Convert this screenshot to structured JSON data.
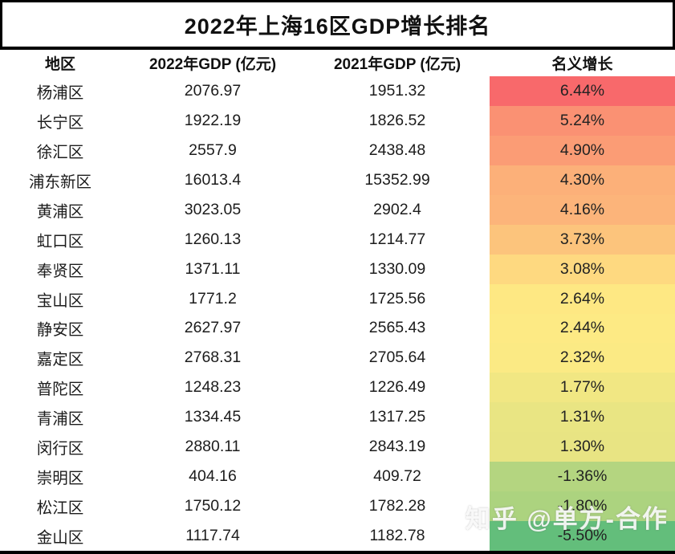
{
  "title": "2022年上海16区GDP增长排名",
  "watermark": "知乎 @单方-合作",
  "colors": {
    "border": "#000000",
    "background": "#ffffff",
    "text": "#111111",
    "scale_max_red": "#F8696B",
    "scale_mid_yellow": "#FFEB84",
    "scale_min_green": "#63BE7B"
  },
  "table": {
    "headers": [
      "地区",
      "2022年GDP (亿元)",
      "2021年GDP (亿元)",
      "名义增长"
    ],
    "rows": [
      {
        "district": "杨浦区",
        "gdp2022": "2076.97",
        "gdp2021": "1951.32",
        "growth": "6.44%",
        "color": "#F8696B"
      },
      {
        "district": "长宁区",
        "gdp2022": "1922.19",
        "gdp2021": "1826.52",
        "growth": "5.24%",
        "color": "#FA9173"
      },
      {
        "district": "徐汇区",
        "gdp2022": "2557.9",
        "gdp2021": "2438.48",
        "growth": "4.90%",
        "color": "#FB9C75"
      },
      {
        "district": "浦东新区",
        "gdp2022": "16013.4",
        "gdp2021": "15352.99",
        "growth": "4.30%",
        "color": "#FCB079"
      },
      {
        "district": "黄浦区",
        "gdp2022": "3023.05",
        "gdp2021": "2902.4",
        "growth": "4.16%",
        "color": "#FCB47A"
      },
      {
        "district": "虹口区",
        "gdp2022": "1260.13",
        "gdp2021": "1214.77",
        "growth": "3.73%",
        "color": "#FCC47C"
      },
      {
        "district": "奉贤区",
        "gdp2022": "1371.11",
        "gdp2021": "1330.09",
        "growth": "3.08%",
        "color": "#FED980"
      },
      {
        "district": "宝山区",
        "gdp2022": "1771.2",
        "gdp2021": "1725.56",
        "growth": "2.64%",
        "color": "#FEE883"
      },
      {
        "district": "静安区",
        "gdp2022": "2627.97",
        "gdp2021": "2565.43",
        "growth": "2.44%",
        "color": "#FDEA84"
      },
      {
        "district": "嘉定区",
        "gdp2022": "2768.31",
        "gdp2021": "2705.64",
        "growth": "2.32%",
        "color": "#FBEA84"
      },
      {
        "district": "普陀区",
        "gdp2022": "1248.23",
        "gdp2021": "1226.49",
        "growth": "1.77%",
        "color": "#F1E783"
      },
      {
        "district": "青浦区",
        "gdp2022": "1334.45",
        "gdp2021": "1317.25",
        "growth": "1.31%",
        "color": "#E9E583"
      },
      {
        "district": "闵行区",
        "gdp2022": "2880.11",
        "gdp2021": "2843.19",
        "growth": "1.30%",
        "color": "#E8E483"
      },
      {
        "district": "崇明区",
        "gdp2022": "404.16",
        "gdp2021": "409.72",
        "growth": "-1.36%",
        "color": "#B4D580"
      },
      {
        "district": "松江区",
        "gdp2022": "1750.12",
        "gdp2021": "1782.28",
        "growth": "-1.80%",
        "color": "#ACD37F"
      },
      {
        "district": "金山区",
        "gdp2022": "1117.74",
        "gdp2021": "1182.78",
        "growth": "-5.50%",
        "color": "#63BE7B"
      }
    ]
  },
  "chart_data": {
    "type": "table",
    "title": "2022年上海16区GDP增长排名",
    "columns": [
      "地区",
      "2022年GDP (亿元)",
      "2021年GDP (亿元)",
      "名义增长"
    ],
    "heatmap_column": "名义增长",
    "heatmap_scale": {
      "max_color": "#F8696B",
      "mid_color": "#FFEB84",
      "min_color": "#63BE7B",
      "max": 6.44,
      "min": -5.5
    },
    "rows": [
      [
        "杨浦区",
        2076.97,
        1951.32,
        "6.44%"
      ],
      [
        "长宁区",
        1922.19,
        1826.52,
        "5.24%"
      ],
      [
        "徐汇区",
        2557.9,
        2438.48,
        "4.90%"
      ],
      [
        "浦东新区",
        16013.4,
        15352.99,
        "4.30%"
      ],
      [
        "黄浦区",
        3023.05,
        2902.4,
        "4.16%"
      ],
      [
        "虹口区",
        1260.13,
        1214.77,
        "3.73%"
      ],
      [
        "奉贤区",
        1371.11,
        1330.09,
        "3.08%"
      ],
      [
        "宝山区",
        1771.2,
        1725.56,
        "2.64%"
      ],
      [
        "静安区",
        2627.97,
        2565.43,
        "2.44%"
      ],
      [
        "嘉定区",
        2768.31,
        2705.64,
        "2.32%"
      ],
      [
        "普陀区",
        1248.23,
        1226.49,
        "1.77%"
      ],
      [
        "青浦区",
        1334.45,
        1317.25,
        "1.31%"
      ],
      [
        "闵行区",
        2880.11,
        2843.19,
        "1.30%"
      ],
      [
        "崇明区",
        404.16,
        409.72,
        "-1.36%"
      ],
      [
        "松江区",
        1750.12,
        1782.28,
        "-1.80%"
      ],
      [
        "金山区",
        1117.74,
        1182.78,
        "-5.50%"
      ]
    ]
  }
}
